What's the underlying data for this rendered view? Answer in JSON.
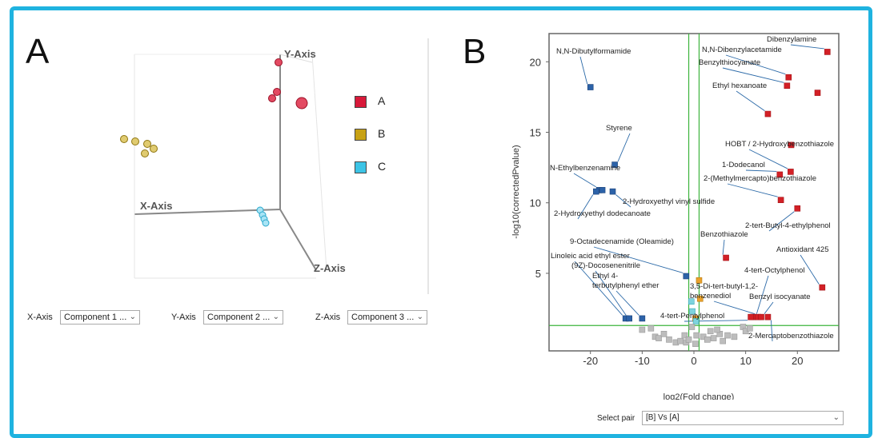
{
  "panels": {
    "a_letter": "A",
    "b_letter": "B"
  },
  "panel_a": {
    "legend": [
      {
        "label": "A",
        "color": "#d8193a"
      },
      {
        "label": "B",
        "color": "#c8a215"
      },
      {
        "label": "C",
        "color": "#3cc4e6"
      }
    ],
    "axis_selectors": [
      {
        "label": "X-Axis",
        "value": "Component 1 ..."
      },
      {
        "label": "Y-Axis",
        "value": "Component 2 ..."
      },
      {
        "label": "Z-Axis",
        "value": "Component 3 ..."
      }
    ]
  },
  "chart_data": [
    {
      "type": "scatter",
      "panel": "A",
      "xlabel": "X-Axis",
      "ylabel": "Y-Axis",
      "zlabel": "Z-Axis",
      "legend_placement": "right",
      "series": [
        {
          "name": "A",
          "color": "#d8193a",
          "count": 4
        },
        {
          "name": "B",
          "color": "#c8a215",
          "count": 5
        },
        {
          "name": "C",
          "color": "#3cc4e6",
          "count": 4
        }
      ]
    },
    {
      "type": "scatter",
      "panel": "B",
      "xlabel": "log2(Fold change)",
      "ylabel": "-log10(correctedPvalue)",
      "xlim": [
        -28,
        28
      ],
      "ylim": [
        -0.5,
        22
      ],
      "xticks": [
        -20,
        -10,
        0,
        10,
        20
      ],
      "yticks": [
        5,
        10,
        15,
        20
      ],
      "threshold_lines": {
        "x": [
          -1,
          1
        ],
        "y": 1.3,
        "color": "#3db43d"
      },
      "grid": false,
      "points": [
        {
          "x": -20,
          "y": 18.2,
          "c": "blue",
          "label": "N,N-Dibutylformamide"
        },
        {
          "x": -15.3,
          "y": 12.7,
          "c": "blue",
          "label": "Styrene"
        },
        {
          "x": -18.3,
          "y": 10.9,
          "c": "blue",
          "label": "N-Ethylbenzenamine"
        },
        {
          "x": -17.7,
          "y": 10.9,
          "c": "blue"
        },
        {
          "x": -15.7,
          "y": 10.8,
          "c": "blue",
          "label": "2-Hydroxyethyl vinyl sulfide"
        },
        {
          "x": -18.9,
          "y": 10.8,
          "c": "blue",
          "label": "2-Hydroxyethyl dodecanoate"
        },
        {
          "x": -1.5,
          "y": 4.8,
          "c": "blue",
          "label": "9-Octadecenamide (Oleamide)"
        },
        {
          "x": -13.2,
          "y": 1.8,
          "c": "blue",
          "label": "Linoleic acid ethyl ester"
        },
        {
          "x": -12.5,
          "y": 1.8,
          "c": "blue",
          "label": "(9Z)-Docosenenitrile"
        },
        {
          "x": -10,
          "y": 1.8,
          "c": "blue",
          "label": "Ethyl 4-terbutylphenyl ether"
        },
        {
          "x": 25.8,
          "y": 20.7,
          "c": "red",
          "label": "Dibenzylamine"
        },
        {
          "x": 18.3,
          "y": 18.9,
          "c": "red",
          "label": "N,N-Dibenzylacetamide"
        },
        {
          "x": 18.0,
          "y": 18.3,
          "c": "red",
          "label": "Benzylthiocyanate"
        },
        {
          "x": 23.9,
          "y": 17.8,
          "c": "red"
        },
        {
          "x": 14.3,
          "y": 16.3,
          "c": "red",
          "label": "Ethyl hexanoate"
        },
        {
          "x": 18.8,
          "y": 14.1,
          "c": "red"
        },
        {
          "x": 18.7,
          "y": 12.2,
          "c": "red",
          "label": "HOBT / 2-Hydroxybenzothiazole"
        },
        {
          "x": 16.6,
          "y": 12.0,
          "c": "red",
          "label": "1-Dodecanol"
        },
        {
          "x": 16.8,
          "y": 10.2,
          "c": "red",
          "label": "2-(Methylmercapto)benzothiazole"
        },
        {
          "x": 20.0,
          "y": 9.6,
          "c": "red",
          "label": "2-tert-Butyl-4-ethylphenol"
        },
        {
          "x": 6.2,
          "y": 6.1,
          "c": "red",
          "label": "Benzothiazole"
        },
        {
          "x": 24.8,
          "y": 4.0,
          "c": "red",
          "label": "Antioxidant 425"
        },
        {
          "x": 11.5,
          "y": 1.9,
          "c": "red",
          "label": "4-tert-Octylphenol"
        },
        {
          "x": 12.4,
          "y": 1.9,
          "c": "red",
          "label": "3,5-Di-tert-butyl-1,2-benzenediol"
        },
        {
          "x": 13.0,
          "y": 1.9,
          "c": "red",
          "label": "Benzyl isocyanate"
        },
        {
          "x": 14.3,
          "y": 1.9,
          "c": "red",
          "label": "2-Mercaptobenzothiazole"
        },
        {
          "x": 11.0,
          "y": 1.9,
          "c": "red",
          "label": "4-tert-Pentylphenol"
        },
        {
          "x": 1.0,
          "y": 4.5,
          "c": "orange"
        },
        {
          "x": 1.2,
          "y": 3.2,
          "c": "orange"
        },
        {
          "x": 0.3,
          "y": 1.8,
          "c": "orange"
        },
        {
          "x": -0.5,
          "y": 3.0,
          "c": "teal"
        },
        {
          "x": -0.3,
          "y": 2.3,
          "c": "teal"
        },
        {
          "x": 0.4,
          "y": 1.6,
          "c": "teal"
        },
        {
          "x": -10.0,
          "y": 1.0,
          "c": "gray"
        },
        {
          "x": -8.3,
          "y": 1.1,
          "c": "gray"
        },
        {
          "x": -7.5,
          "y": 0.5,
          "c": "gray"
        },
        {
          "x": -6.8,
          "y": 0.4,
          "c": "gray"
        },
        {
          "x": -5.8,
          "y": 0.7,
          "c": "gray"
        },
        {
          "x": -4.8,
          "y": 0.3,
          "c": "gray"
        },
        {
          "x": -3.5,
          "y": 0.1,
          "c": "gray"
        },
        {
          "x": -2.6,
          "y": 0.2,
          "c": "gray"
        },
        {
          "x": -1.8,
          "y": 0.6,
          "c": "gray"
        },
        {
          "x": -1.5,
          "y": 0.1,
          "c": "gray"
        },
        {
          "x": -0.4,
          "y": 1.2,
          "c": "gray"
        },
        {
          "x": 0.3,
          "y": 0.0,
          "c": "gray"
        },
        {
          "x": 0.5,
          "y": 0.6,
          "c": "gray"
        },
        {
          "x": 1.8,
          "y": 0.5,
          "c": "gray"
        },
        {
          "x": 2.6,
          "y": 0.3,
          "c": "gray"
        },
        {
          "x": 3.2,
          "y": 0.9,
          "c": "gray"
        },
        {
          "x": 3.8,
          "y": 0.4,
          "c": "gray"
        },
        {
          "x": 5.0,
          "y": 0.7,
          "c": "gray"
        },
        {
          "x": 5.6,
          "y": 0.2,
          "c": "gray"
        },
        {
          "x": 6.5,
          "y": 0.6,
          "c": "gray"
        },
        {
          "x": 7.8,
          "y": 0.5,
          "c": "gray"
        },
        {
          "x": 9.5,
          "y": 1.2,
          "c": "gray"
        },
        {
          "x": 10.0,
          "y": 0.9,
          "c": "gray"
        },
        {
          "x": 10.8,
          "y": 1.1,
          "c": "gray"
        },
        {
          "x": 4.5,
          "y": 1.0,
          "c": "gray"
        },
        {
          "x": -1.0,
          "y": 0.3,
          "c": "gray"
        }
      ]
    }
  ],
  "panel_b_controls": {
    "select_pair_label": "Select pair",
    "select_pair_value": "[B] Vs [A]"
  }
}
